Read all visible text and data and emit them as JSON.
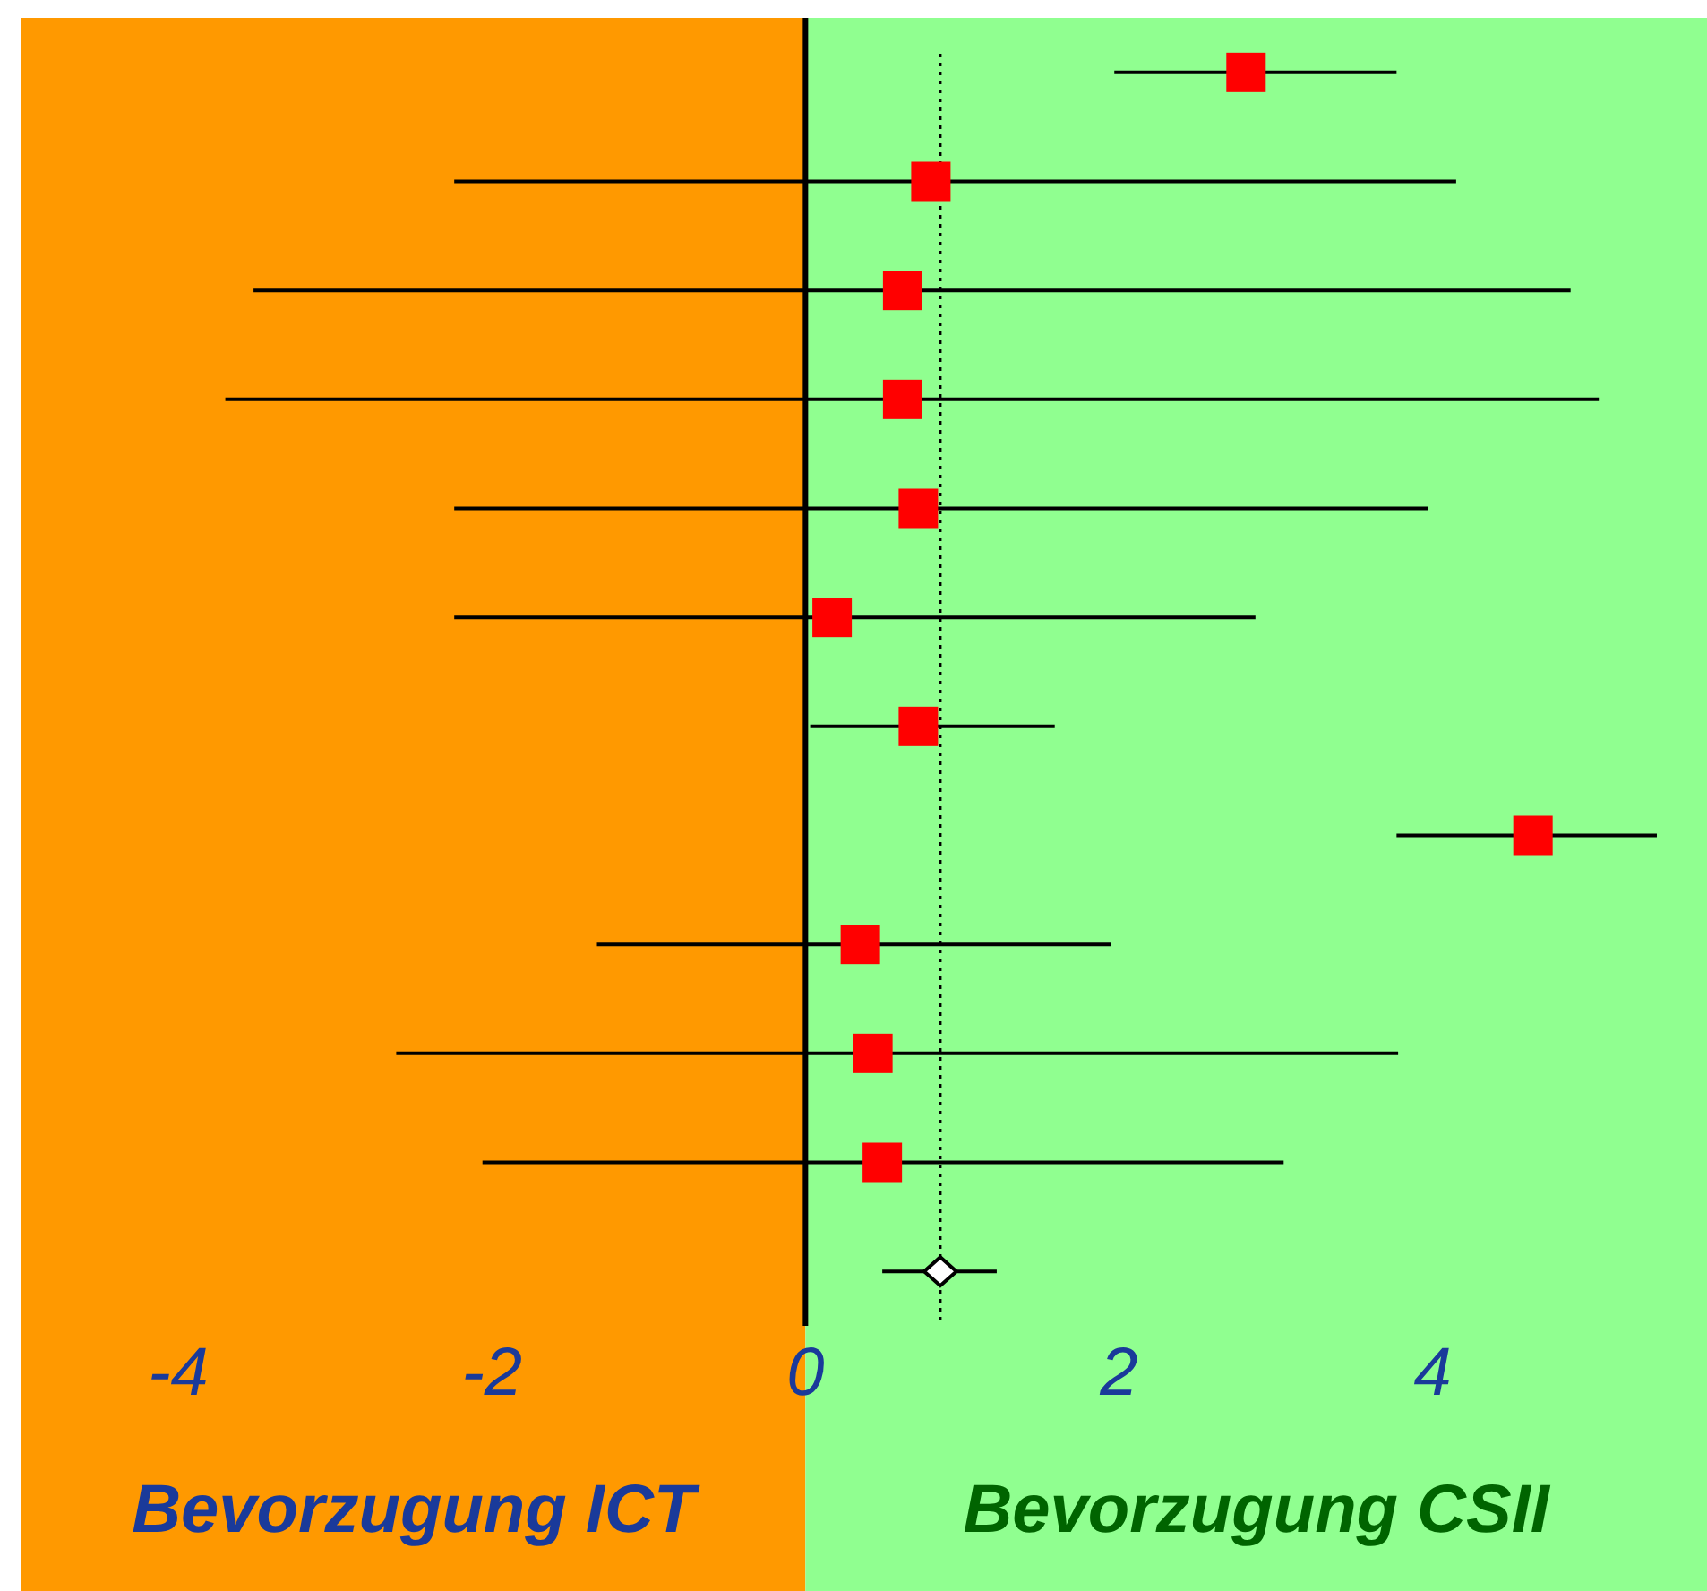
{
  "chart_data": {
    "type": "scatter",
    "orientation": "horizontal",
    "tick_labels": "x",
    "categories": [
      null,
      null,
      null,
      null,
      null,
      null,
      null,
      null,
      null,
      null,
      null,
      null
    ],
    "series": [
      {
        "marker": "square",
        "color": "#ff0000",
        "values": [
          2.81,
          0.8,
          0.62,
          0.62,
          0.72,
          0.17,
          0.72,
          4.64,
          0.35,
          0.43,
          0.49,
          null
        ],
        "errors": [
          [
            1.97,
            3.77
          ],
          [
            -2.24,
            4.15
          ],
          [
            -3.52,
            4.88
          ],
          [
            -3.7,
            5.06
          ],
          [
            -2.24,
            3.97
          ],
          [
            -2.24,
            2.87
          ],
          [
            0.03,
            1.59
          ],
          [
            3.77,
            5.43
          ],
          [
            -1.33,
            1.95
          ],
          [
            -2.61,
            3.78
          ],
          [
            -2.06,
            3.05
          ],
          null
        ]
      },
      {
        "marker": "diamond",
        "color": "#000000",
        "values": [
          null,
          null,
          null,
          null,
          null,
          null,
          null,
          null,
          null,
          null,
          null,
          0.86
        ],
        "errors": [
          null,
          null,
          null,
          null,
          null,
          null,
          null,
          null,
          null,
          null,
          null,
          [
            0.49,
            1.22
          ]
        ]
      }
    ],
    "xlim": [
      -5,
      5.75
    ],
    "xticks": [
      -4,
      -2,
      0,
      2,
      4
    ],
    "bands": [
      {
        "axis": "x",
        "from": -5,
        "to": 0,
        "color": "#ff9900",
        "label": "Bevorzugung ICT"
      },
      {
        "axis": "x",
        "from": 0,
        "to": 5.75,
        "color": "#90ff90",
        "label": "Bevorzugung CSII"
      }
    ],
    "ref_lines": [
      {
        "axis": "x",
        "value": 0,
        "color": "#000000",
        "line_style": "solid"
      },
      {
        "axis": "x",
        "value": 0.86,
        "color": "#000000",
        "line_style": "dotted"
      }
    ]
  }
}
